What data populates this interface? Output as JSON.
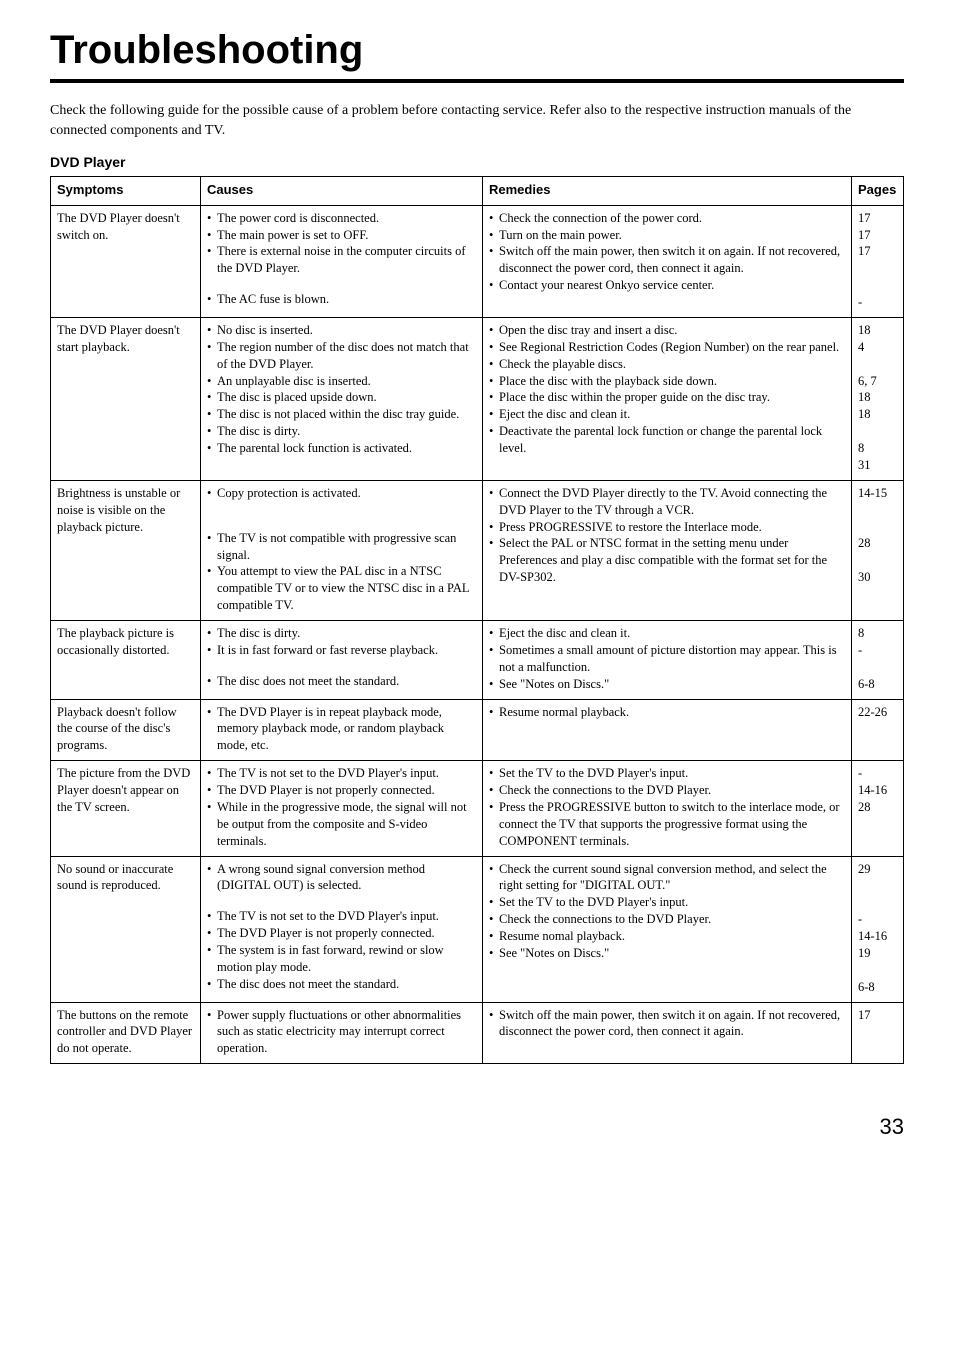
{
  "title": "Troubleshooting",
  "intro": "Check the following guide for the possible cause of a problem before contacting service. Refer also to the respective instruction manuals of the connected components and TV.",
  "section": "DVD Player",
  "headers": {
    "symptoms": "Symptoms",
    "causes": "Causes",
    "remedies": "Remedies",
    "pages": "Pages"
  },
  "rows": [
    {
      "symptom": "The DVD Player doesn't switch on.",
      "causes": [
        "The power cord is disconnected.",
        "The main power is set to OFF.",
        "There is external noise in the computer circuits of the DVD Player.",
        "The AC fuse is blown."
      ],
      "remedies": [
        "Check the connection of the power cord.",
        "Turn on the main power.",
        "Switch off the main power, then switch it on again. If not recovered, disconnect the power cord, then connect it again.",
        "Contact your nearest Onkyo service center."
      ],
      "pages": [
        "17",
        "17",
        "17",
        "",
        "",
        "-"
      ]
    },
    {
      "symptom": "The DVD Player doesn't start playback.",
      "causes": [
        "No disc is inserted.",
        "The region number of the disc does not match that of the DVD Player.",
        "An unplayable disc is inserted.",
        "The disc is placed upside down.",
        "The disc is not placed within the disc tray guide.",
        "The disc is dirty.",
        "The parental lock function is activated."
      ],
      "remedies": [
        "Open the disc tray and insert a disc.",
        "See Regional Restriction Codes (Region Number) on the rear panel.",
        "Check the playable discs.",
        "Place the disc with the playback side down.",
        "Place the disc within the proper guide on the disc tray.",
        "Eject the disc and clean it.",
        "Deactivate the parental lock function or change the parental lock level."
      ],
      "pages": [
        "18",
        "4",
        "",
        "6, 7",
        "18",
        "18",
        "",
        "8",
        "31"
      ]
    },
    {
      "symptom": "Brightness is unstable or noise is visible on the playback picture.",
      "causes": [
        "Copy protection is activated.",
        "The TV is not compatible with progressive scan signal.",
        "You attempt to view the PAL disc in a NTSC compatible TV or to view the NTSC disc in a PAL compatible TV."
      ],
      "remedies": [
        "Connect the DVD Player directly to the TV. Avoid connecting the DVD Player to the TV through a VCR.",
        "Press PROGRESSIVE to restore the Interlace mode.",
        "Select the PAL or NTSC format in the setting menu under Preferences and play a disc compatible with the format set for the DV-SP302."
      ],
      "pages": [
        "14-15",
        "",
        "",
        "28",
        "",
        "30"
      ]
    },
    {
      "symptom": "The playback picture is occasionally distorted.",
      "causes": [
        "The disc is dirty.",
        "It is in fast forward or fast reverse playback.",
        "The disc does not meet the standard."
      ],
      "remedies": [
        "Eject the disc and clean it.",
        "Sometimes a small amount of picture distortion may appear. This is not a malfunction.",
        "See \"Notes on Discs.\""
      ],
      "pages": [
        "8",
        "-",
        "",
        "6-8"
      ]
    },
    {
      "symptom": "Playback doesn't follow the course of the disc's programs.",
      "causes": [
        "The DVD Player is in repeat playback mode, memory playback mode, or random playback mode, etc."
      ],
      "remedies": [
        "Resume normal playback."
      ],
      "pages": [
        "22-26"
      ]
    },
    {
      "symptom": "The picture from the DVD Player doesn't appear on the TV screen.",
      "causes": [
        "The TV is not set to the DVD Player's input.",
        "The DVD Player is not properly connected.",
        "While in the progressive mode, the signal will not be output from the composite and S-video terminals."
      ],
      "remedies": [
        "Set the TV to the DVD Player's input.",
        "Check the connections to the DVD Player.",
        "Press the PROGRESSIVE button to switch to the interlace mode, or connect the TV that supports the progressive format using the COMPONENT terminals."
      ],
      "pages": [
        "-",
        "14-16",
        "28"
      ]
    },
    {
      "symptom": "No sound or inaccurate sound is reproduced.",
      "causes": [
        "A wrong sound signal conversion method (DIGITAL OUT) is selected.",
        "The TV is not set to the DVD Player's input.",
        "The DVD Player is not properly connected.",
        "The system is in fast forward, rewind or slow motion play mode.",
        "The disc does not meet the standard."
      ],
      "remedies": [
        "Check the current sound signal conversion method, and select the right setting for \"DIGITAL OUT.\"",
        "Set the TV to the DVD Player's input.",
        "Check the connections to the DVD Player.",
        "Resume nomal playback.",
        "See \"Notes on Discs.\""
      ],
      "pages": [
        "29",
        "",
        "",
        "-",
        "14-16",
        "19",
        "",
        "6-8"
      ]
    },
    {
      "symptom": "The buttons on the remote controller and DVD Player do not operate.",
      "causes": [
        "Power supply fluctuations or other abnormalities such as static electricity may interrupt correct operation."
      ],
      "remedies": [
        "Switch off the main power, then switch it on again. If not recovered, disconnect the power cord, then connect it again."
      ],
      "pages": [
        "17"
      ]
    }
  ],
  "pageNumber": "33",
  "causesSpacing": [
    [
      0,
      0,
      0,
      14,
      0
    ],
    [
      0,
      0,
      0,
      0,
      0,
      0,
      0,
      0
    ],
    [
      0,
      28,
      0,
      0
    ],
    [
      0,
      0,
      14,
      0
    ],
    [
      0
    ],
    [
      0,
      0,
      0
    ],
    [
      0,
      14,
      0,
      0,
      0,
      0
    ],
    [
      0
    ]
  ]
}
